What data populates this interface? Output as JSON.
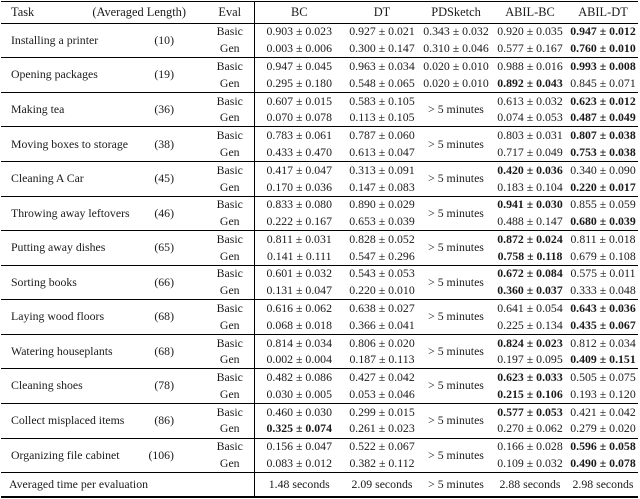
{
  "table": {
    "headers": {
      "task": "Task",
      "length": "(Averaged Length)",
      "eval": "Eval",
      "bc": "BC",
      "dt": "DT",
      "pdsketch": "PDSketch",
      "abil_bc": "ABIL-BC",
      "abil_dt": "ABIL-DT"
    },
    "eval_labels": {
      "basic": "Basic",
      "gen": "Gen"
    },
    "pdsketch_timeout": "> 5 minutes",
    "rows": [
      {
        "task": "Installing a printer",
        "length": "(10)",
        "pdsketch_merged": false,
        "basic": {
          "bc": {
            "v": "0.903 ± 0.023"
          },
          "dt": {
            "v": "0.927 ± 0.021"
          },
          "pdsketch": {
            "v": "0.343 ± 0.032"
          },
          "abil_bc": {
            "v": "0.920 ± 0.035"
          },
          "abil_dt": {
            "v": "0.947 ± 0.012",
            "b": true
          }
        },
        "gen": {
          "bc": {
            "v": "0.003 ± 0.006"
          },
          "dt": {
            "v": "0.300 ± 0.147"
          },
          "pdsketch": {
            "v": "0.310 ± 0.046"
          },
          "abil_bc": {
            "v": "0.577 ± 0.167"
          },
          "abil_dt": {
            "v": "0.760 ± 0.010",
            "b": true
          }
        }
      },
      {
        "task": "Opening packages",
        "length": "(19)",
        "pdsketch_merged": false,
        "basic": {
          "bc": {
            "v": "0.947 ± 0.045"
          },
          "dt": {
            "v": "0.963 ± 0.034"
          },
          "pdsketch": {
            "v": "0.020 ± 0.010"
          },
          "abil_bc": {
            "v": "0.988 ± 0.016"
          },
          "abil_dt": {
            "v": "0.993 ± 0.008",
            "b": true
          }
        },
        "gen": {
          "bc": {
            "v": "0.295 ± 0.180"
          },
          "dt": {
            "v": "0.548 ± 0.065"
          },
          "pdsketch": {
            "v": "0.020 ± 0.010"
          },
          "abil_bc": {
            "v": "0.892 ± 0.043",
            "b": true
          },
          "abil_dt": {
            "v": "0.845 ± 0.071"
          }
        }
      },
      {
        "task": "Making tea",
        "length": "(36)",
        "pdsketch_merged": true,
        "basic": {
          "bc": {
            "v": "0.607 ± 0.015"
          },
          "dt": {
            "v": "0.583 ± 0.105"
          },
          "abil_bc": {
            "v": "0.613 ± 0.032"
          },
          "abil_dt": {
            "v": "0.623 ± 0.012",
            "b": true
          }
        },
        "gen": {
          "bc": {
            "v": "0.070 ± 0.078"
          },
          "dt": {
            "v": "0.113 ± 0.105"
          },
          "abil_bc": {
            "v": "0.074 ± 0.053"
          },
          "abil_dt": {
            "v": "0.487 ± 0.049",
            "b": true
          }
        }
      },
      {
        "task": "Moving boxes to storage",
        "length": "(38)",
        "pdsketch_merged": true,
        "basic": {
          "bc": {
            "v": "0.783 ± 0.061"
          },
          "dt": {
            "v": "0.787 ± 0.060"
          },
          "abil_bc": {
            "v": "0.803 ± 0.031"
          },
          "abil_dt": {
            "v": "0.807 ± 0.038",
            "b": true
          }
        },
        "gen": {
          "bc": {
            "v": "0.433 ± 0.470"
          },
          "dt": {
            "v": "0.613 ± 0.047"
          },
          "abil_bc": {
            "v": "0.717 ± 0.049"
          },
          "abil_dt": {
            "v": "0.753 ± 0.038",
            "b": true
          }
        }
      },
      {
        "task": "Cleaning A Car",
        "length": "(45)",
        "pdsketch_merged": true,
        "basic": {
          "bc": {
            "v": "0.417 ± 0.047"
          },
          "dt": {
            "v": "0.313 ± 0.091"
          },
          "abil_bc": {
            "v": "0.420 ± 0.036",
            "b": true
          },
          "abil_dt": {
            "v": "0.340 ± 0.090"
          }
        },
        "gen": {
          "bc": {
            "v": "0.170 ± 0.036"
          },
          "dt": {
            "v": "0.147 ± 0.083"
          },
          "abil_bc": {
            "v": "0.183 ± 0.104"
          },
          "abil_dt": {
            "v": "0.220 ± 0.017",
            "b": true
          }
        }
      },
      {
        "task": "Throwing away leftovers",
        "length": "(46)",
        "pdsketch_merged": true,
        "basic": {
          "bc": {
            "v": "0.833 ± 0.080"
          },
          "dt": {
            "v": "0.890 ± 0.029"
          },
          "abil_bc": {
            "v": "0.941 ± 0.030",
            "b": true
          },
          "abil_dt": {
            "v": "0.855 ± 0.059"
          }
        },
        "gen": {
          "bc": {
            "v": "0.222 ± 0.167"
          },
          "dt": {
            "v": "0.653 ± 0.039"
          },
          "abil_bc": {
            "v": "0.488 ± 0.147"
          },
          "abil_dt": {
            "v": "0.680 ± 0.039",
            "b": true
          }
        }
      },
      {
        "task": "Putting away dishes",
        "length": "(65)",
        "pdsketch_merged": true,
        "basic": {
          "bc": {
            "v": "0.811 ± 0.031"
          },
          "dt": {
            "v": "0.828 ± 0.052"
          },
          "abil_bc": {
            "v": "0.872 ± 0.024",
            "b": true
          },
          "abil_dt": {
            "v": "0.811 ± 0.018"
          }
        },
        "gen": {
          "bc": {
            "v": "0.141 ± 0.111"
          },
          "dt": {
            "v": "0.547 ± 0.296"
          },
          "abil_bc": {
            "v": "0.758 ± 0.118",
            "b": true
          },
          "abil_dt": {
            "v": "0.679 ± 0.108"
          }
        }
      },
      {
        "task": "Sorting books",
        "length": "(66)",
        "pdsketch_merged": true,
        "basic": {
          "bc": {
            "v": "0.601 ± 0.032"
          },
          "dt": {
            "v": "0.543 ± 0.053"
          },
          "abil_bc": {
            "v": "0.672 ± 0.084",
            "b": true
          },
          "abil_dt": {
            "v": "0.575 ± 0.011"
          }
        },
        "gen": {
          "bc": {
            "v": "0.131 ± 0.047"
          },
          "dt": {
            "v": "0.220 ± 0.010"
          },
          "abil_bc": {
            "v": "0.360 ± 0.037",
            "b": true
          },
          "abil_dt": {
            "v": "0.333 ± 0.048"
          }
        }
      },
      {
        "task": "Laying wood floors",
        "length": "(68)",
        "pdsketch_merged": true,
        "basic": {
          "bc": {
            "v": "0.616 ± 0.062"
          },
          "dt": {
            "v": "0.638 ± 0.027"
          },
          "abil_bc": {
            "v": "0.641 ± 0.054"
          },
          "abil_dt": {
            "v": "0.643 ± 0.036",
            "b": true
          }
        },
        "gen": {
          "bc": {
            "v": "0.068 ± 0.018"
          },
          "dt": {
            "v": "0.366 ± 0.041"
          },
          "abil_bc": {
            "v": "0.225 ± 0.134"
          },
          "abil_dt": {
            "v": "0.435 ± 0.067",
            "b": true
          }
        }
      },
      {
        "task": "Watering houseplants",
        "length": "(68)",
        "pdsketch_merged": true,
        "basic": {
          "bc": {
            "v": "0.814 ± 0.034"
          },
          "dt": {
            "v": "0.806 ± 0.020"
          },
          "abil_bc": {
            "v": "0.824 ± 0.023",
            "b": true
          },
          "abil_dt": {
            "v": "0.812 ± 0.034"
          }
        },
        "gen": {
          "bc": {
            "v": "0.002 ± 0.004"
          },
          "dt": {
            "v": "0.187 ± 0.113"
          },
          "abil_bc": {
            "v": "0.197 ± 0.095"
          },
          "abil_dt": {
            "v": "0.409 ± 0.151",
            "b": true
          }
        }
      },
      {
        "task": "Cleaning shoes",
        "length": "(78)",
        "pdsketch_merged": true,
        "basic": {
          "bc": {
            "v": "0.482 ± 0.086"
          },
          "dt": {
            "v": "0.427 ± 0.042"
          },
          "abil_bc": {
            "v": "0.623 ± 0.033",
            "b": true
          },
          "abil_dt": {
            "v": "0.505 ± 0.075"
          }
        },
        "gen": {
          "bc": {
            "v": "0.030 ± 0.005"
          },
          "dt": {
            "v": "0.053 ± 0.046"
          },
          "abil_bc": {
            "v": "0.215 ± 0.106",
            "b": true
          },
          "abil_dt": {
            "v": "0.193 ± 0.120"
          }
        }
      },
      {
        "task": "Collect misplaced items",
        "length": "(86)",
        "pdsketch_merged": true,
        "basic": {
          "bc": {
            "v": "0.460 ± 0.030"
          },
          "dt": {
            "v": "0.299 ± 0.015"
          },
          "abil_bc": {
            "v": "0.577 ± 0.053",
            "b": true
          },
          "abil_dt": {
            "v": "0.421 ± 0.042"
          }
        },
        "gen": {
          "bc": {
            "v": "0.325 ± 0.074",
            "b": true
          },
          "dt": {
            "v": "0.261 ± 0.023"
          },
          "abil_bc": {
            "v": "0.270 ± 0.062"
          },
          "abil_dt": {
            "v": "0.279 ± 0.020"
          }
        }
      },
      {
        "task": "Organizing file cabinet",
        "length": "(106)",
        "pdsketch_merged": true,
        "basic": {
          "bc": {
            "v": "0.156 ± 0.047"
          },
          "dt": {
            "v": "0.522 ± 0.067"
          },
          "abil_bc": {
            "v": "0.166 ± 0.028"
          },
          "abil_dt": {
            "v": "0.596 ± 0.058",
            "b": true
          }
        },
        "gen": {
          "bc": {
            "v": "0.083 ± 0.012"
          },
          "dt": {
            "v": "0.382 ± 0.112"
          },
          "abil_bc": {
            "v": "0.109 ± 0.032"
          },
          "abil_dt": {
            "v": "0.490 ± 0.078",
            "b": true
          }
        }
      }
    ],
    "footer": {
      "label": "Averaged time per evaluation",
      "bc": "1.48 seconds",
      "dt": "2.09 seconds",
      "pdsketch": "> 5 minutes",
      "abil_bc": "2.88 seconds",
      "abil_dt": "2.98 seconds"
    }
  }
}
